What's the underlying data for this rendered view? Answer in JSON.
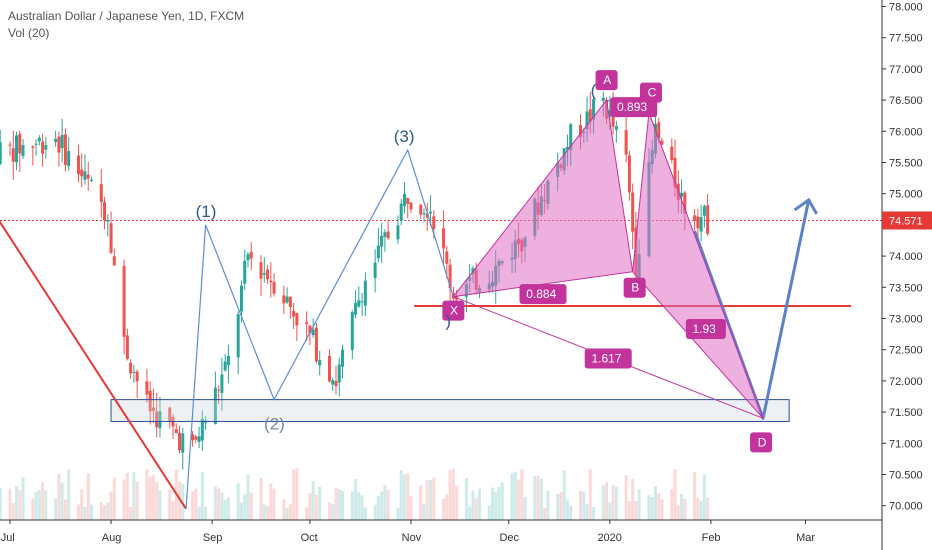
{
  "header": {
    "symbol_line": "Australian Dollar / Japanese Yen, 1D, FXCM",
    "volume_line": "Vol (20)"
  },
  "price_axis": {
    "ticks": [
      "78.000",
      "77.500",
      "77.000",
      "76.500",
      "76.000",
      "75.500",
      "75.000",
      "74.500",
      "74.000",
      "73.500",
      "73.000",
      "72.500",
      "72.000",
      "71.500",
      "71.000",
      "70.500",
      "70.000"
    ],
    "last_price_label": "74.571",
    "last_price_color": "#e53935"
  },
  "time_axis": {
    "labels": [
      "Jul",
      "Aug",
      "Sep",
      "Oct",
      "Nov",
      "Dec",
      "2020",
      "Feb",
      "Mar"
    ]
  },
  "colors": {
    "up": "#26a69a",
    "down": "#ef5350",
    "pattern_fill": "#e070c4",
    "pattern_stroke": "#c2339c",
    "tag_bg": "#c2339c",
    "wave_line": "#5b8fd4",
    "wave_label": "#2f5a8a",
    "downtrend": "#e53935",
    "support_line": "#e53935",
    "zone_border": "#2a4ea0",
    "projection": "#5b82c8"
  },
  "wave_labels": [
    "(1)",
    "(2)",
    "(3)",
    "(",
    ")"
  ],
  "harmonic": {
    "points": [
      "X",
      "A",
      "B",
      "C",
      "D"
    ],
    "ratios": [
      "0.893",
      "0.884",
      "1.93",
      "1.617"
    ]
  },
  "chart_data": {
    "type": "candlestick",
    "title": "Australian Dollar / Japanese Yen, 1D, FXCM",
    "y_unit": "JPY",
    "ylim": [
      69.85,
      78.05
    ],
    "x_range": [
      "2019-07-01",
      "2020-03-10"
    ],
    "last_price": 74.571,
    "price_series": [
      {
        "date": "2019-07-01",
        "close": 75.7
      },
      {
        "date": "2019-07-15",
        "close": 75.9
      },
      {
        "date": "2019-07-31",
        "close": 74.7
      },
      {
        "date": "2019-08-05",
        "close": 72.6
      },
      {
        "date": "2019-08-12",
        "close": 71.6
      },
      {
        "date": "2019-08-26",
        "close": 70.9
      },
      {
        "date": "2019-09-06",
        "close": 72.3
      },
      {
        "date": "2019-09-12",
        "close": 74.0
      },
      {
        "date": "2019-09-20",
        "close": 73.6
      },
      {
        "date": "2019-09-30",
        "close": 72.8
      },
      {
        "date": "2019-10-09",
        "close": 72.0
      },
      {
        "date": "2019-10-17",
        "close": 73.5
      },
      {
        "date": "2019-10-31",
        "close": 75.0
      },
      {
        "date": "2019-11-07",
        "close": 74.8
      },
      {
        "date": "2019-11-14",
        "close": 73.4
      },
      {
        "date": "2019-11-27",
        "close": 73.8
      },
      {
        "date": "2019-12-05",
        "close": 74.3
      },
      {
        "date": "2019-12-20",
        "close": 75.9
      },
      {
        "date": "2019-12-30",
        "close": 76.5
      },
      {
        "date": "2020-01-06",
        "close": 75.5
      },
      {
        "date": "2020-01-09",
        "close": 73.9
      },
      {
        "date": "2020-01-15",
        "close": 76.0
      },
      {
        "date": "2020-01-24",
        "close": 74.8
      },
      {
        "date": "2020-01-31",
        "close": 74.57
      }
    ],
    "annotations": {
      "harmonic_pattern": {
        "X": {
          "date": "2019-11-14",
          "price": 73.35
        },
        "A": {
          "date": "2019-12-31",
          "price": 76.5
        },
        "B": {
          "date": "2020-01-08",
          "price": 73.75
        },
        "C": {
          "date": "2020-01-13",
          "price": 76.3
        },
        "D": {
          "date": "2020-02-17",
          "price": 71.4
        },
        "ratios": {
          "XA_B": 0.884,
          "AB_C": 0.893,
          "BC_D": 1.93,
          "XA_D": 1.617
        }
      },
      "elliott_waves": [
        {
          "label": "(1)",
          "date": "2019-08-30",
          "price": 74.5
        },
        {
          "label": "(2)",
          "date": "2019-09-20",
          "price": 71.7
        },
        {
          "label": "(3)",
          "date": "2019-10-31",
          "price": 75.7
        }
      ],
      "downtrend_line": [
        {
          "date": "2019-06-26",
          "price": 74.7
        },
        {
          "date": "2019-08-24",
          "price": 69.95
        }
      ],
      "support_line": {
        "price": 73.2,
        "from": "2019-11-02",
        "to": "2020-03-15"
      },
      "demand_zone": {
        "price_low": 71.35,
        "price_high": 71.7,
        "from": "2019-08-01",
        "to": "2020-02-25"
      },
      "projection": [
        {
          "date": "2020-01-27",
          "price": 74.4
        },
        {
          "date": "2020-02-17",
          "price": 71.4
        },
        {
          "date": "2020-03-02",
          "price": 74.9
        }
      ]
    }
  }
}
